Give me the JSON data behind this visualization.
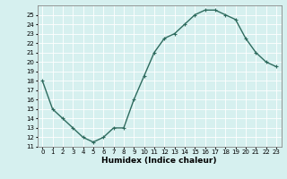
{
  "x": [
    0,
    1,
    2,
    3,
    4,
    5,
    6,
    7,
    8,
    9,
    10,
    11,
    12,
    13,
    14,
    15,
    16,
    17,
    18,
    19,
    20,
    21,
    22,
    23
  ],
  "y": [
    18,
    15,
    14,
    13,
    12,
    11.5,
    12,
    13,
    13,
    16,
    18.5,
    21,
    22.5,
    23,
    24,
    25,
    25.5,
    25.5,
    25,
    24.5,
    22.5,
    21,
    20,
    19.5
  ],
  "line_color": "#2e6b5e",
  "marker": "+",
  "marker_size": 3,
  "xlabel": "Humidex (Indice chaleur)",
  "xlim": [
    -0.5,
    23.5
  ],
  "ylim": [
    11,
    26
  ],
  "yticks": [
    11,
    12,
    13,
    14,
    15,
    16,
    17,
    18,
    19,
    20,
    21,
    22,
    23,
    24,
    25
  ],
  "xticks": [
    0,
    1,
    2,
    3,
    4,
    5,
    6,
    7,
    8,
    9,
    10,
    11,
    12,
    13,
    14,
    15,
    16,
    17,
    18,
    19,
    20,
    21,
    22,
    23
  ],
  "bg_color": "#d6f0ef",
  "grid_color": "#ffffff",
  "tick_fontsize": 5,
  "label_fontsize": 6.5
}
